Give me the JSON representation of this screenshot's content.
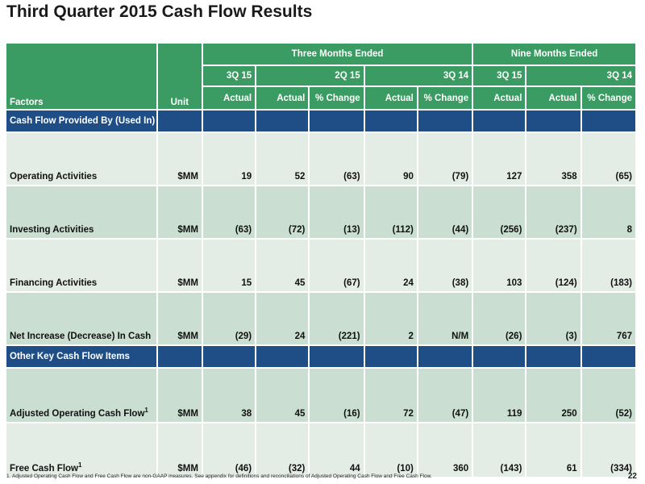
{
  "title": "Third Quarter 2015 Cash Flow Results",
  "header": {
    "group_three": "Three Months Ended",
    "group_nine": "Nine Months Ended",
    "periods": [
      "3Q 15",
      "2Q 15",
      "3Q 14",
      "3Q 15",
      "3Q 14"
    ],
    "factors": "Factors",
    "unit": "Unit",
    "columns": [
      "Actual",
      "Actual",
      "% Change",
      "Actual",
      "% Change",
      "Actual",
      "Actual",
      "% Change"
    ]
  },
  "sections": [
    {
      "label": "Cash Flow Provided By (Used In)",
      "rows": [
        {
          "name": "Operating Activities",
          "sup": "",
          "unit": "$MM",
          "values": [
            "19",
            "52",
            "(63)",
            "90",
            "(79)",
            "127",
            "358",
            "(65)"
          ]
        },
        {
          "name": "Investing Activities",
          "sup": "",
          "unit": "$MM",
          "values": [
            "(63)",
            "(72)",
            "(13)",
            "(112)",
            "(44)",
            "(256)",
            "(237)",
            "8"
          ]
        },
        {
          "name": "Financing Activities",
          "sup": "",
          "unit": "$MM",
          "values": [
            "15",
            "45",
            "(67)",
            "24",
            "(38)",
            "103",
            "(124)",
            "(183)"
          ]
        },
        {
          "name": "Net Increase (Decrease) In Cash",
          "sup": "",
          "unit": "$MM",
          "values": [
            "(29)",
            "24",
            "(221)",
            "2",
            "N/M",
            "(26)",
            "(3)",
            "767"
          ]
        }
      ]
    },
    {
      "label": "Other Key Cash Flow Items",
      "rows": [
        {
          "name": "Adjusted Operating Cash Flow",
          "sup": "1",
          "unit": "$MM",
          "values": [
            "38",
            "45",
            "(16)",
            "72",
            "(47)",
            "119",
            "250",
            "(52)"
          ]
        },
        {
          "name": "Free Cash Flow",
          "sup": "1",
          "unit": "$MM",
          "values": [
            "(46)",
            "(32)",
            "44",
            "(10)",
            "360",
            "(143)",
            "61",
            "(334)"
          ]
        }
      ]
    }
  ],
  "footnote": "1. Adjusted Operating Cash Flow and Free Cash Flow are non-GAAP measures. See appendix for definitions and reconciliations of Adjusted Operating Cash Flow and Free Cash Flow.",
  "page_number": "22",
  "colors": {
    "header_green": "#3a9c62",
    "section_blue": "#1f4e86",
    "row_light": "#e4ece6",
    "row_dark": "#cadfd1"
  }
}
